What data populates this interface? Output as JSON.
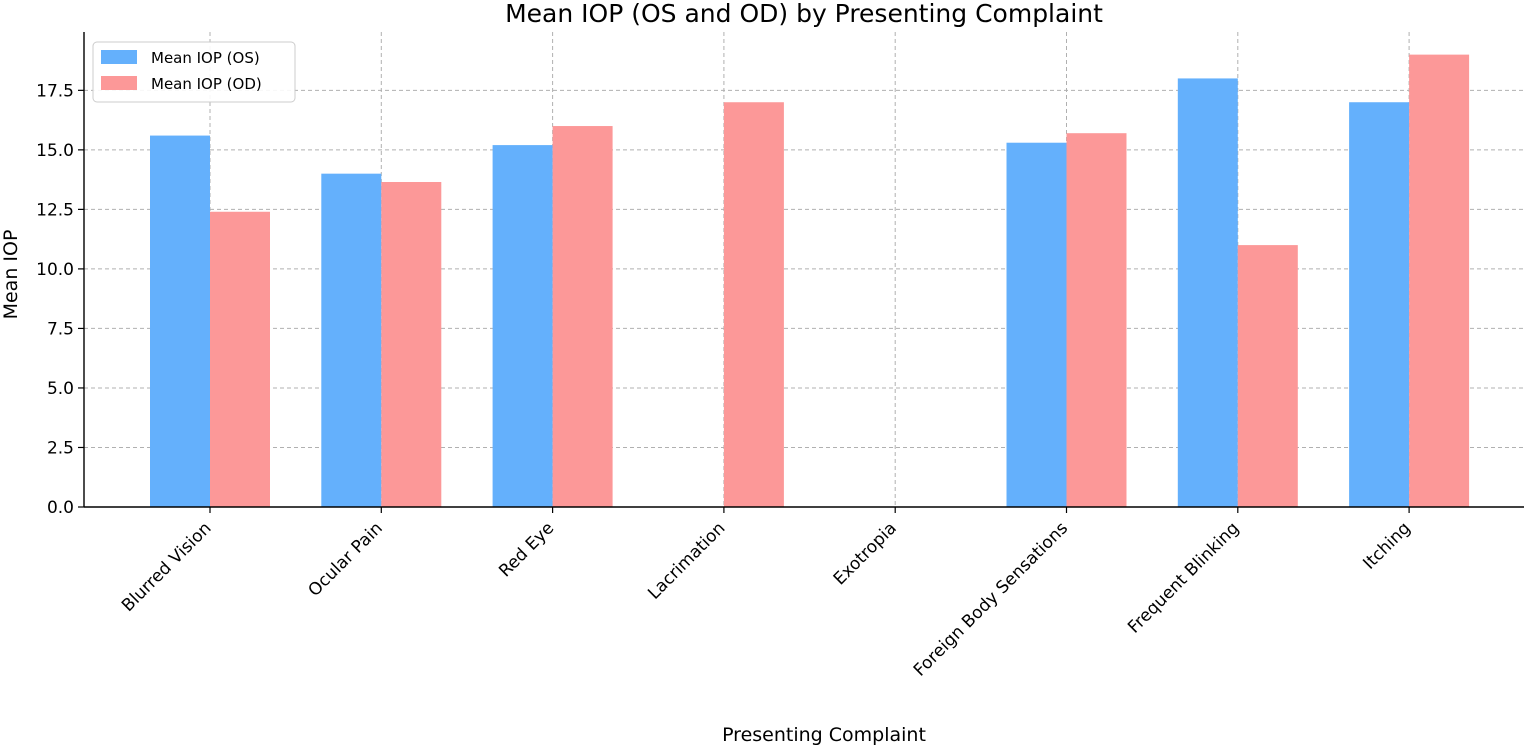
{
  "chart_data": {
    "type": "bar",
    "title": "Mean IOP (OS and OD) by Presenting Complaint",
    "xlabel": "Presenting Complaint",
    "ylabel": "Mean IOP",
    "categories": [
      "Blurred Vision",
      "Ocular Pain",
      "Red Eye",
      "Lacrimation",
      "Exotropia",
      "Foreign Body Sensations",
      "Frequent Blinking",
      "Itching"
    ],
    "series": [
      {
        "name": "Mean IOP (OS)",
        "color": "#64b0fc",
        "values": [
          15.6,
          14.0,
          15.2,
          null,
          null,
          15.3,
          18.0,
          17.0
        ]
      },
      {
        "name": "Mean IOP (OD)",
        "color": "#fc9898",
        "values": [
          12.4,
          13.65,
          16.0,
          17.0,
          null,
          15.7,
          11.0,
          19.0
        ]
      }
    ],
    "ylim": [
      0,
      19.95
    ],
    "yticks": [
      "0.0",
      "2.5",
      "5.0",
      "7.5",
      "10.0",
      "12.5",
      "15.0",
      "17.5"
    ],
    "grid": true,
    "legend_position": "top-left"
  }
}
